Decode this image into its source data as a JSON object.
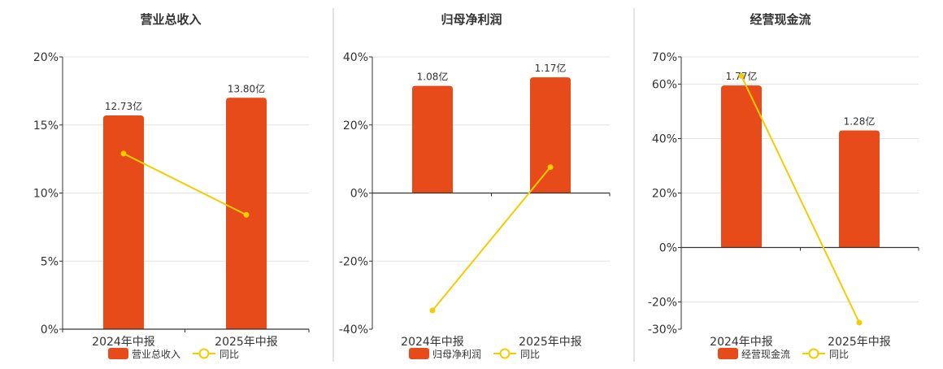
{
  "chart_data": [
    {
      "type": "bar",
      "title": "营业总收入",
      "categories": [
        "2024年中报",
        "2025年中报"
      ],
      "series": [
        {
          "name": "营业总收入",
          "kind": "bar",
          "values": [
            15.7,
            17.0
          ],
          "labels": [
            "12.73亿",
            "13.80亿"
          ]
        },
        {
          "name": "同比",
          "kind": "line",
          "values": [
            12.9,
            8.4
          ]
        }
      ],
      "yticks": [
        0,
        5,
        10,
        15,
        20
      ],
      "ytick_labels": [
        "0%",
        "5%",
        "10%",
        "15%",
        "20%"
      ],
      "ylim": [
        0,
        20
      ],
      "legend_position": "bottom",
      "grid": true
    },
    {
      "type": "bar",
      "title": "归母净利润",
      "categories": [
        "2024年中报",
        "2025年中报"
      ],
      "series": [
        {
          "name": "归母净利润",
          "kind": "bar",
          "values": [
            31.5,
            34.0
          ],
          "labels": [
            "1.08亿",
            "1.17亿"
          ]
        },
        {
          "name": "同比",
          "kind": "line",
          "values": [
            -34.5,
            7.6
          ]
        }
      ],
      "yticks": [
        -40,
        -20,
        0,
        20,
        40
      ],
      "ytick_labels": [
        "-40%",
        "-20%",
        "0%",
        "20%",
        "40%"
      ],
      "ylim": [
        -40,
        40
      ],
      "legend_position": "bottom",
      "grid": true
    },
    {
      "type": "bar",
      "title": "经营现金流",
      "categories": [
        "2024年中报",
        "2025年中报"
      ],
      "series": [
        {
          "name": "经营现金流",
          "kind": "bar",
          "values": [
            59.5,
            43.0
          ],
          "labels": [
            "1.77亿",
            "1.28亿"
          ]
        },
        {
          "name": "同比",
          "kind": "line",
          "values": [
            63.0,
            -27.6
          ]
        }
      ],
      "yticks": [
        -30,
        -20,
        0,
        20,
        40,
        60,
        70
      ],
      "ytick_labels": [
        "-30%",
        "-20%",
        "0%",
        "20%",
        "40%",
        "60%",
        "70%"
      ],
      "ylim": [
        -30,
        70
      ],
      "legend_position": "bottom",
      "grid": true
    }
  ],
  "colors": {
    "bar": "#E84B1A",
    "line": "#F5CC00",
    "axis": "#333333",
    "grid": "#e4e4e4",
    "divider": "#c8c8c8",
    "title": "#333333",
    "tick": "#333333"
  }
}
